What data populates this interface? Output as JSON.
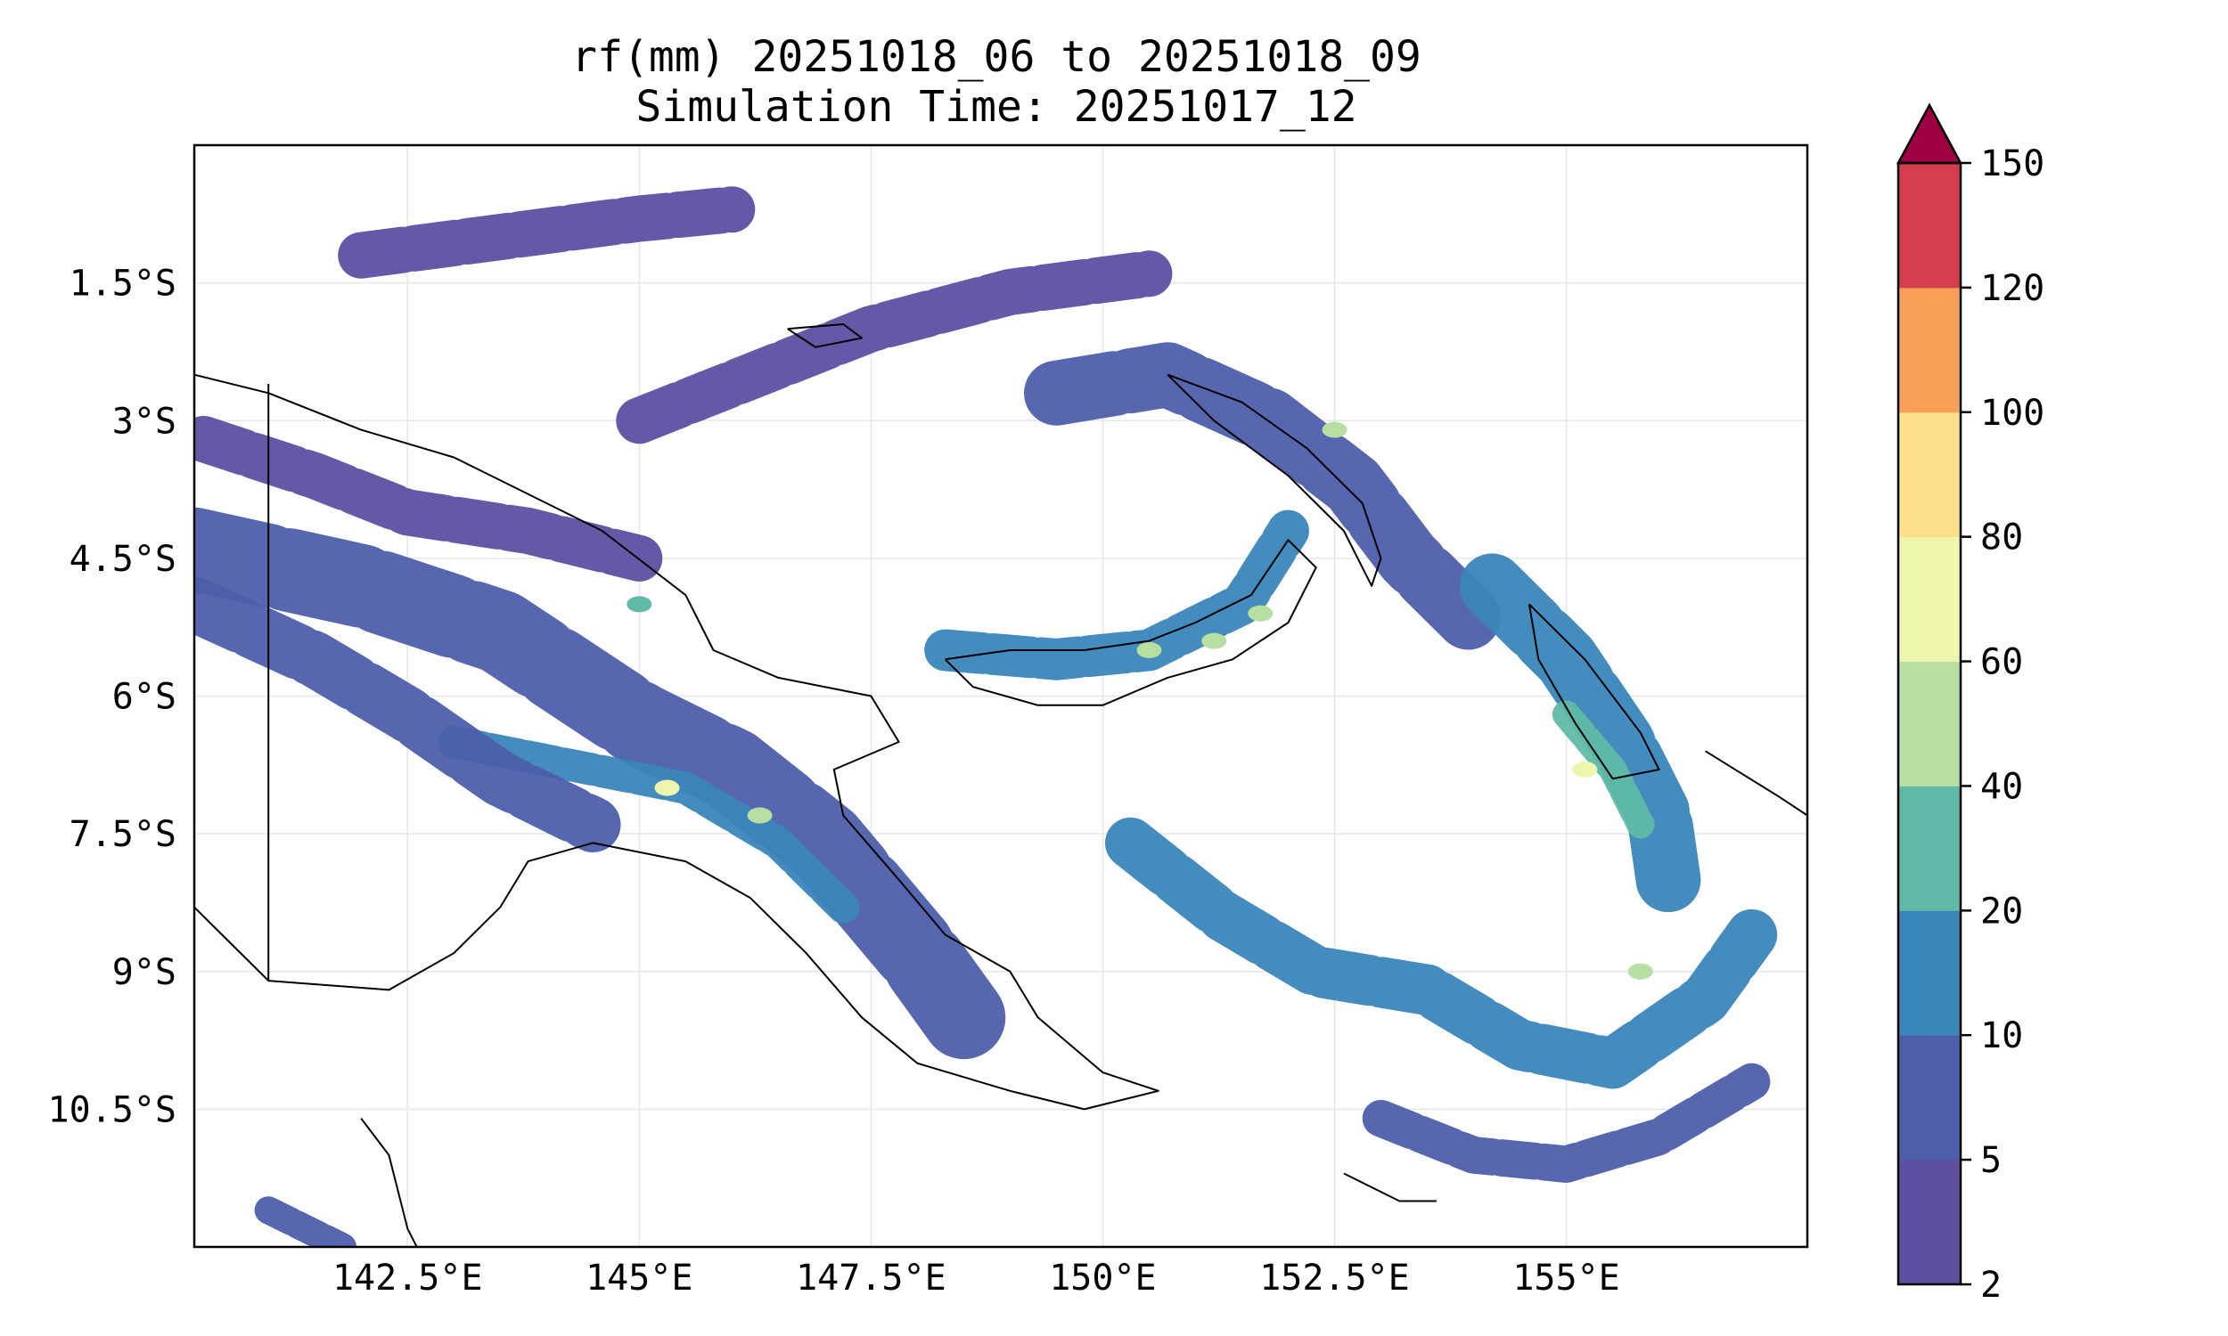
{
  "title_line1": "rf(mm) 20251018_06 to 20251018_09",
  "title_line2": "Simulation Time: 20251017_12",
  "map": {
    "lon_range": [
      140.2,
      157.6
    ],
    "lat_range": [
      -12.0,
      0.0
    ],
    "lon_ticks": [
      {
        "value": 142.5,
        "label": "142.5°E"
      },
      {
        "value": 145.0,
        "label": "145°E"
      },
      {
        "value": 147.5,
        "label": "147.5°E"
      },
      {
        "value": 150.0,
        "label": "150°E"
      },
      {
        "value": 152.5,
        "label": "152.5°E"
      },
      {
        "value": 155.0,
        "label": "155°E"
      }
    ],
    "lat_ticks": [
      {
        "value": -1.5,
        "label": "1.5°S"
      },
      {
        "value": -3.0,
        "label": "3°S"
      },
      {
        "value": -4.5,
        "label": "4.5°S"
      },
      {
        "value": -6.0,
        "label": "6°S"
      },
      {
        "value": -7.5,
        "label": "7.5°S"
      },
      {
        "value": -9.0,
        "label": "9°S"
      },
      {
        "value": -10.5,
        "label": "10.5°S"
      }
    ],
    "gridlines": true,
    "coastlines": [
      {
        "name": "new-guinea-north-coast",
        "points": [
          [
            140.2,
            -2.5
          ],
          [
            141.0,
            -2.7
          ],
          [
            142.0,
            -3.1
          ],
          [
            143.0,
            -3.4
          ],
          [
            144.0,
            -3.9
          ],
          [
            144.6,
            -4.2
          ],
          [
            145.5,
            -4.9
          ],
          [
            145.8,
            -5.5
          ],
          [
            146.5,
            -5.8
          ],
          [
            147.5,
            -6.0
          ],
          [
            147.8,
            -6.5
          ],
          [
            147.1,
            -6.8
          ],
          [
            147.2,
            -7.3
          ],
          [
            147.8,
            -8.0
          ],
          [
            148.3,
            -8.6
          ],
          [
            149.0,
            -9.0
          ],
          [
            149.3,
            -9.5
          ],
          [
            150.0,
            -10.1
          ],
          [
            150.6,
            -10.3
          ],
          [
            149.8,
            -10.5
          ],
          [
            149.0,
            -10.3
          ],
          [
            148.0,
            -10.0
          ],
          [
            147.4,
            -9.5
          ],
          [
            146.8,
            -8.8
          ],
          [
            146.2,
            -8.2
          ],
          [
            145.5,
            -7.8
          ],
          [
            144.5,
            -7.6
          ],
          [
            143.8,
            -7.8
          ],
          [
            143.5,
            -8.3
          ],
          [
            143.0,
            -8.8
          ],
          [
            142.3,
            -9.2
          ],
          [
            141.0,
            -9.1
          ],
          [
            140.2,
            -8.3
          ]
        ]
      },
      {
        "name": "new-britain",
        "points": [
          [
            148.3,
            -5.6
          ],
          [
            149.0,
            -5.5
          ],
          [
            149.8,
            -5.5
          ],
          [
            150.5,
            -5.4
          ],
          [
            151.0,
            -5.2
          ],
          [
            151.6,
            -4.9
          ],
          [
            152.0,
            -4.3
          ],
          [
            152.3,
            -4.6
          ],
          [
            152.0,
            -5.2
          ],
          [
            151.4,
            -5.6
          ],
          [
            150.7,
            -5.8
          ],
          [
            150.0,
            -6.1
          ],
          [
            149.3,
            -6.1
          ],
          [
            148.6,
            -5.9
          ],
          [
            148.3,
            -5.6
          ]
        ]
      },
      {
        "name": "new-ireland",
        "points": [
          [
            150.7,
            -2.5
          ],
          [
            151.5,
            -2.8
          ],
          [
            152.2,
            -3.3
          ],
          [
            152.8,
            -3.9
          ],
          [
            153.0,
            -4.5
          ],
          [
            152.9,
            -4.8
          ],
          [
            152.6,
            -4.2
          ],
          [
            152.0,
            -3.6
          ],
          [
            151.2,
            -3.0
          ],
          [
            150.7,
            -2.5
          ]
        ]
      },
      {
        "name": "manus",
        "points": [
          [
            146.6,
            -2.0
          ],
          [
            147.2,
            -1.95
          ],
          [
            147.4,
            -2.1
          ],
          [
            146.9,
            -2.2
          ],
          [
            146.6,
            -2.0
          ]
        ]
      },
      {
        "name": "bougainville",
        "points": [
          [
            154.6,
            -5.0
          ],
          [
            155.2,
            -5.6
          ],
          [
            155.8,
            -6.4
          ],
          [
            156.0,
            -6.8
          ],
          [
            155.5,
            -6.9
          ],
          [
            155.1,
            -6.3
          ],
          [
            154.7,
            -5.6
          ],
          [
            154.6,
            -5.0
          ]
        ]
      },
      {
        "name": "choiseul",
        "points": [
          [
            156.5,
            -6.6
          ],
          [
            157.3,
            -7.1
          ],
          [
            157.6,
            -7.3
          ]
        ]
      },
      {
        "name": "cape-york",
        "points": [
          [
            142.0,
            -10.6
          ],
          [
            142.3,
            -11.0
          ],
          [
            142.5,
            -11.8
          ],
          [
            142.6,
            -12.0
          ]
        ]
      },
      {
        "name": "louisiade-islands",
        "points": [
          [
            152.6,
            -11.2
          ],
          [
            153.2,
            -11.5
          ],
          [
            153.6,
            -11.5
          ]
        ]
      },
      {
        "name": "border",
        "points": [
          [
            141.0,
            -2.6
          ],
          [
            141.0,
            -9.1
          ]
        ]
      }
    ]
  },
  "colorbar": {
    "levels": [
      "2",
      "5",
      "10",
      "20",
      "40",
      "60",
      "80",
      "100",
      "120",
      "150"
    ],
    "colors": [
      "#5e4fa2",
      "#4d5fab",
      "#3a86bb",
      "#60baa7",
      "#b7dfa1",
      "#f0f5ae",
      "#fddf8a",
      "#f9a058",
      "#d53e4f"
    ],
    "extend_color": "#9e0142",
    "extend": "max"
  },
  "chart_data": {
    "type": "heatmap",
    "title": "rf(mm) 20251018_06 to 20251018_09\nSimulation Time: 20251017_12",
    "xlabel": "",
    "ylabel": "",
    "xlim": [
      140.2,
      157.6
    ],
    "ylim": [
      -12.0,
      0.0
    ],
    "colorbar_levels": [
      2,
      5,
      10,
      20,
      40,
      60,
      80,
      100,
      120,
      150
    ],
    "rain_bands": [
      {
        "name": "png-highlands",
        "path": [
          [
            140.2,
            -4.4
          ],
          [
            142.0,
            -4.8
          ],
          [
            143.5,
            -5.3
          ],
          [
            145.0,
            -6.3
          ],
          [
            146.0,
            -6.8
          ],
          [
            147.0,
            -7.6
          ],
          [
            148.0,
            -8.8
          ],
          [
            148.5,
            -9.5
          ]
        ],
        "width": 0.9,
        "level": 5
      },
      {
        "name": "png-highlands-core",
        "path": [
          [
            143.0,
            -6.5
          ],
          [
            144.5,
            -6.8
          ],
          [
            145.5,
            -7.0
          ],
          [
            146.5,
            -7.6
          ],
          [
            147.2,
            -8.3
          ]
        ],
        "width": 0.35,
        "level": 10
      },
      {
        "name": "western-png",
        "path": [
          [
            140.2,
            -5.0
          ],
          [
            141.5,
            -5.6
          ],
          [
            142.5,
            -6.2
          ],
          [
            143.5,
            -6.9
          ],
          [
            144.5,
            -7.4
          ]
        ],
        "width": 0.6,
        "level": 5
      },
      {
        "name": "sepik-band",
        "path": [
          [
            140.3,
            -3.2
          ],
          [
            141.5,
            -3.6
          ],
          [
            142.5,
            -4.0
          ],
          [
            143.8,
            -4.2
          ],
          [
            145.0,
            -4.5
          ]
        ],
        "width": 0.5,
        "level": 2
      },
      {
        "name": "north-ocean-band",
        "path": [
          [
            142.0,
            -1.2
          ],
          [
            143.5,
            -1.0
          ],
          [
            145.0,
            -0.8
          ],
          [
            146.0,
            -0.7
          ]
        ],
        "width": 0.5,
        "level": 2
      },
      {
        "name": "manus-band",
        "path": [
          [
            145.0,
            -3.0
          ],
          [
            146.5,
            -2.4
          ],
          [
            147.5,
            -2.0
          ],
          [
            149.0,
            -1.6
          ],
          [
            150.5,
            -1.4
          ]
        ],
        "width": 0.5,
        "level": 2
      },
      {
        "name": "new-britain-band",
        "path": [
          [
            148.3,
            -5.5
          ],
          [
            149.5,
            -5.6
          ],
          [
            150.5,
            -5.5
          ],
          [
            151.5,
            -5.0
          ],
          [
            152.0,
            -4.2
          ]
        ],
        "width": 0.45,
        "level": 10
      },
      {
        "name": "new-ireland-band",
        "path": [
          [
            149.5,
            -2.7
          ],
          [
            150.7,
            -2.5
          ],
          [
            151.8,
            -3.0
          ],
          [
            152.7,
            -3.7
          ],
          [
            153.3,
            -4.5
          ],
          [
            154.0,
            -5.2
          ]
        ],
        "width": 0.7,
        "level": 5
      },
      {
        "name": "bougainville-band",
        "path": [
          [
            154.2,
            -4.8
          ],
          [
            155.0,
            -5.6
          ],
          [
            155.6,
            -6.5
          ],
          [
            156.0,
            -7.3
          ],
          [
            156.1,
            -8.0
          ]
        ],
        "width": 0.7,
        "level": 10
      },
      {
        "name": "bougainville-core",
        "path": [
          [
            155.0,
            -6.2
          ],
          [
            155.5,
            -6.8
          ],
          [
            155.8,
            -7.4
          ]
        ],
        "width": 0.3,
        "level": 20
      },
      {
        "name": "solomon-sea-arc",
        "path": [
          [
            150.3,
            -7.6
          ],
          [
            151.3,
            -8.4
          ],
          [
            152.3,
            -9.0
          ],
          [
            153.5,
            -9.2
          ],
          [
            154.5,
            -9.8
          ],
          [
            155.5,
            -10.0
          ],
          [
            156.5,
            -9.3
          ],
          [
            157.0,
            -8.6
          ]
        ],
        "width": 0.55,
        "level": 10
      },
      {
        "name": "southern-arc",
        "path": [
          [
            153.0,
            -10.6
          ],
          [
            154.0,
            -11.0
          ],
          [
            155.0,
            -11.1
          ],
          [
            156.0,
            -10.8
          ],
          [
            157.0,
            -10.2
          ]
        ],
        "width": 0.4,
        "level": 5
      },
      {
        "name": "cape-york-band",
        "path": [
          [
            141.0,
            -11.6
          ],
          [
            141.8,
            -12.0
          ]
        ],
        "width": 0.3,
        "level": 5
      }
    ],
    "rain_peaks": [
      {
        "lon": 145.3,
        "lat": -7.0,
        "level": 60
      },
      {
        "lon": 146.3,
        "lat": -7.3,
        "level": 40
      },
      {
        "lon": 155.2,
        "lat": -6.8,
        "level": 60
      },
      {
        "lon": 150.5,
        "lat": -5.5,
        "level": 40
      },
      {
        "lon": 151.2,
        "lat": -5.4,
        "level": 40
      },
      {
        "lon": 151.7,
        "lat": -5.1,
        "level": 40
      },
      {
        "lon": 152.5,
        "lat": -3.1,
        "level": 40
      },
      {
        "lon": 155.8,
        "lat": -9.0,
        "level": 40
      },
      {
        "lon": 145.0,
        "lat": -5.0,
        "level": 20
      }
    ]
  }
}
